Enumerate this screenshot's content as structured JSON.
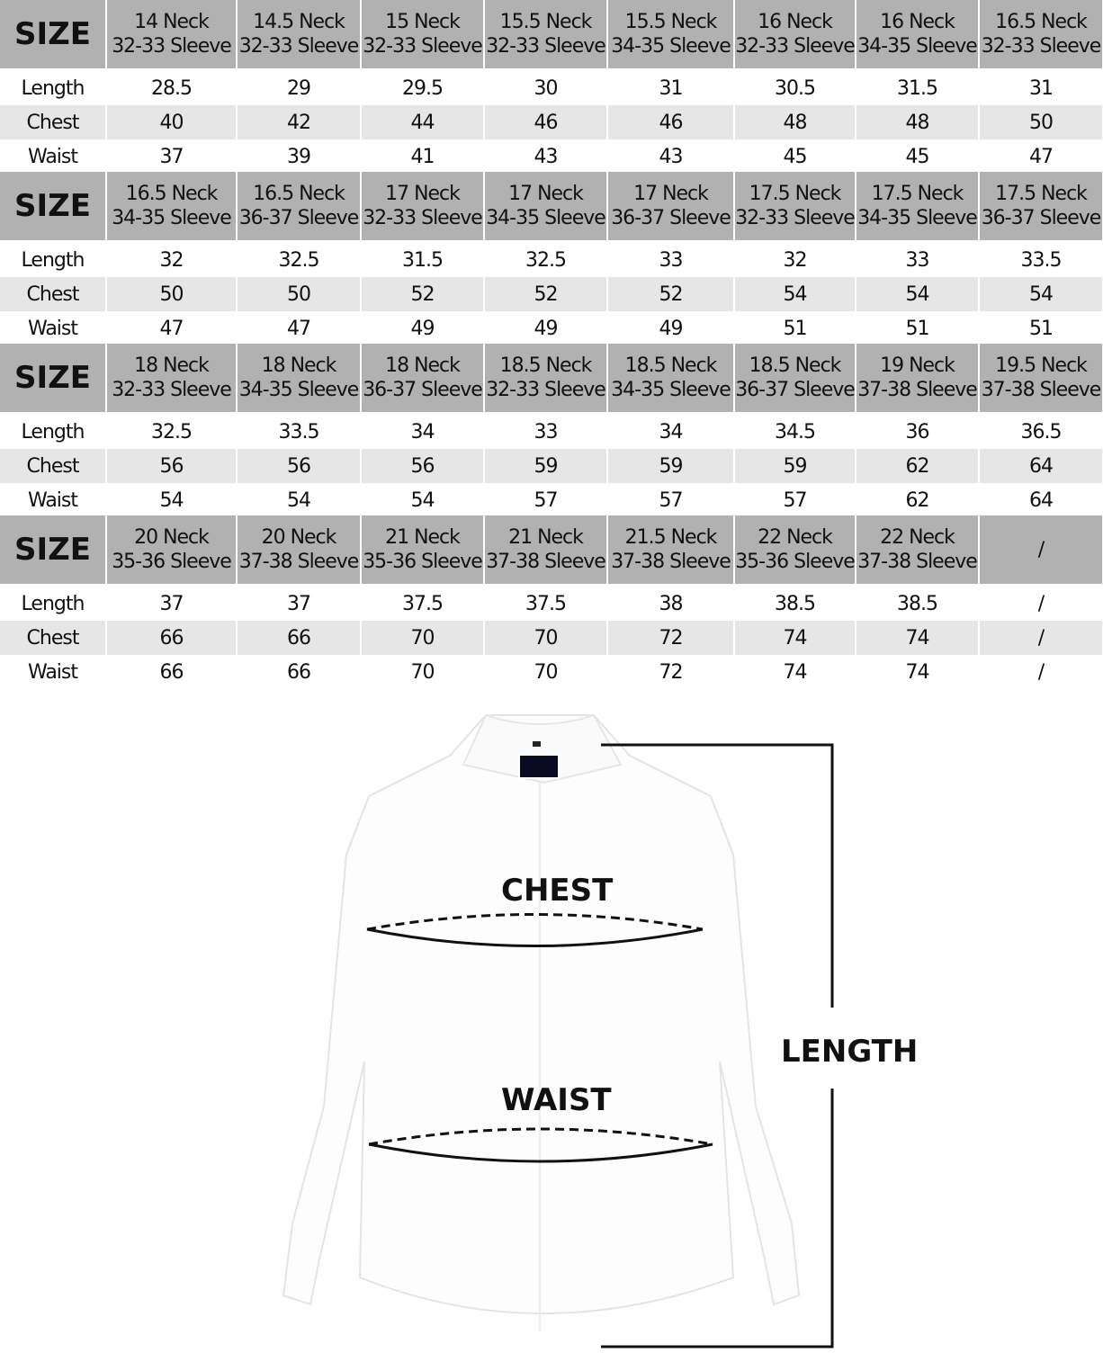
{
  "size_label": "SIZE",
  "row_labels": [
    "Length",
    "Chest",
    "Waist"
  ],
  "blocks": [
    {
      "headers": [
        [
          "14 Neck",
          "32-33 Sleeve"
        ],
        [
          "14.5 Neck",
          "32-33 Sleeve"
        ],
        [
          "15 Neck",
          "32-33 Sleeve"
        ],
        [
          "15.5 Neck",
          "32-33 Sleeve"
        ],
        [
          "15.5 Neck",
          "34-35 Sleeve"
        ],
        [
          "16 Neck",
          "32-33 Sleeve"
        ],
        [
          "16 Neck",
          "34-35 Sleeve"
        ],
        [
          "16.5 Neck",
          "32-33 Sleeve"
        ]
      ],
      "rows": [
        [
          "28.5",
          "29",
          "29.5",
          "30",
          "31",
          "30.5",
          "31.5",
          "31"
        ],
        [
          "40",
          "42",
          "44",
          "46",
          "46",
          "48",
          "48",
          "50"
        ],
        [
          "37",
          "39",
          "41",
          "43",
          "43",
          "45",
          "45",
          "47"
        ]
      ]
    },
    {
      "headers": [
        [
          "16.5 Neck",
          "34-35 Sleeve"
        ],
        [
          "16.5 Neck",
          "36-37 Sleeve"
        ],
        [
          "17 Neck",
          "32-33 Sleeve"
        ],
        [
          "17 Neck",
          "34-35 Sleeve"
        ],
        [
          "17 Neck",
          "36-37 Sleeve"
        ],
        [
          "17.5 Neck",
          "32-33 Sleeve"
        ],
        [
          "17.5 Neck",
          "34-35 Sleeve"
        ],
        [
          "17.5 Neck",
          "36-37 Sleeve"
        ]
      ],
      "rows": [
        [
          "32",
          "32.5",
          "31.5",
          "32.5",
          "33",
          "32",
          "33",
          "33.5"
        ],
        [
          "50",
          "50",
          "52",
          "52",
          "52",
          "54",
          "54",
          "54"
        ],
        [
          "47",
          "47",
          "49",
          "49",
          "49",
          "51",
          "51",
          "51"
        ]
      ]
    },
    {
      "headers": [
        [
          "18 Neck",
          "32-33 Sleeve"
        ],
        [
          "18 Neck",
          "34-35 Sleeve"
        ],
        [
          "18 Neck",
          "36-37 Sleeve"
        ],
        [
          "18.5 Neck",
          "32-33 Sleeve"
        ],
        [
          "18.5 Neck",
          "34-35 Sleeve"
        ],
        [
          "18.5 Neck",
          "36-37 Sleeve"
        ],
        [
          "19 Neck",
          "37-38 Sleeve"
        ],
        [
          "19.5 Neck",
          "37-38 Sleeve"
        ]
      ],
      "rows": [
        [
          "32.5",
          "33.5",
          "34",
          "33",
          "34",
          "34.5",
          "36",
          "36.5"
        ],
        [
          "56",
          "56",
          "56",
          "59",
          "59",
          "59",
          "62",
          "64"
        ],
        [
          "54",
          "54",
          "54",
          "57",
          "57",
          "57",
          "62",
          "64"
        ]
      ]
    },
    {
      "headers": [
        [
          "20 Neck",
          "35-36 Sleeve"
        ],
        [
          "20 Neck",
          "37-38 Sleeve"
        ],
        [
          "21 Neck",
          "35-36 Sleeve"
        ],
        [
          "21 Neck",
          "37-38 Sleeve"
        ],
        [
          "21.5 Neck",
          "37-38 Sleeve"
        ],
        [
          "22 Neck",
          "35-36 Sleeve"
        ],
        [
          "22 Neck",
          "37-38 Sleeve"
        ],
        [
          "/",
          ""
        ]
      ],
      "rows": [
        [
          "37",
          "37",
          "37.5",
          "37.5",
          "38",
          "38.5",
          "38.5",
          "/"
        ],
        [
          "66",
          "66",
          "70",
          "70",
          "72",
          "74",
          "74",
          "/"
        ],
        [
          "66",
          "66",
          "70",
          "70",
          "72",
          "74",
          "74",
          "/"
        ]
      ]
    }
  ],
  "diagram": {
    "chest_label": "CHEST",
    "waist_label": "WAIST",
    "length_label": "LENGTH"
  }
}
